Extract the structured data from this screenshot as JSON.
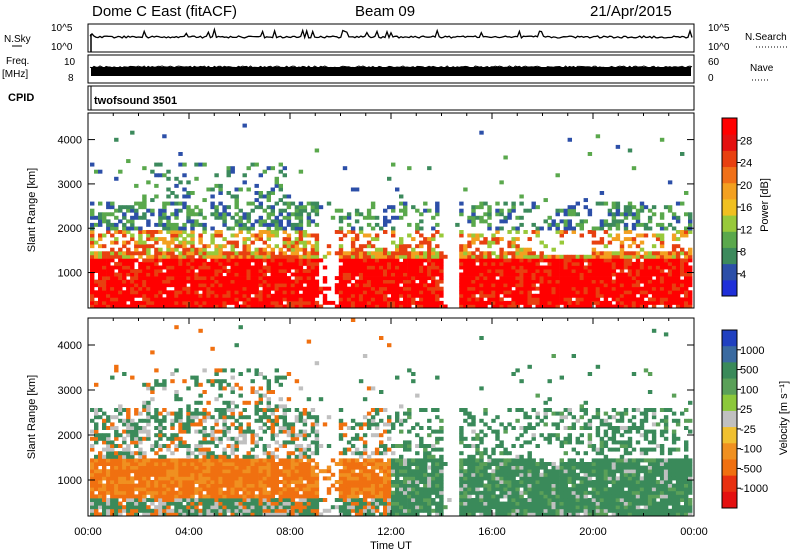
{
  "chart_data": [
    {
      "type": "line",
      "header": {
        "station": "Dome C East (fitACF)",
        "beam": "Beam 09",
        "date": "21/Apr/2015"
      },
      "panels": [
        {
          "name": "N.Sky",
          "left_label": "N.Sky",
          "right_label": "N.Search",
          "left_ticks": [
            "10^5",
            "10^0"
          ],
          "right_ticks": [
            "10^5",
            "10^0"
          ]
        },
        {
          "name": "Freq",
          "left_label_1": "Freq.",
          "left_label_2": "[MHz]",
          "right_label": "Nave",
          "left_ticks": [
            "10",
            "8"
          ],
          "right_ticks": [
            "60",
            "0"
          ]
        },
        {
          "name": "CPID",
          "left_label": "CPID",
          "program_text": "twofsound 3501"
        }
      ]
    },
    {
      "type": "heatmap",
      "name": "power",
      "ylabel": "Slant Range [km]",
      "ylim": [
        200,
        4600
      ],
      "yticks": [
        1000,
        2000,
        3000,
        4000
      ],
      "colorbar_label": "Power [dB]",
      "colorbar_ticks": [
        "4",
        "8",
        "12",
        "16",
        "20",
        "24",
        "28"
      ],
      "colorbar_colors": [
        "#1f2fd8",
        "#2c4fa8",
        "#3c8a5c",
        "#5aa84c",
        "#98c93a",
        "#f0c020",
        "#f3a020",
        "#f07018",
        "#e84010",
        "#e41010",
        "#ff0000"
      ]
    },
    {
      "type": "heatmap",
      "name": "velocity",
      "ylabel": "Slant Range [km]",
      "ylim": [
        200,
        4600
      ],
      "yticks": [
        1000,
        2000,
        3000,
        4000
      ],
      "colorbar_label": "Velocity [m s⁻¹]",
      "colorbar_ticks": [
        "1000",
        "500",
        "100",
        "25",
        "-25",
        "-100",
        "-500",
        "-1000"
      ],
      "colorbar_colors": [
        "#2040c0",
        "#3a6aa0",
        "#3a8a5a",
        "#5aa058",
        "#8cc83a",
        "#c0c0c0",
        "#f0c030",
        "#f09020",
        "#f07010",
        "#e83010",
        "#e41010"
      ],
      "xlabel": "Time UT",
      "xticks": [
        "00:00",
        "04:00",
        "08:00",
        "12:00",
        "16:00",
        "20:00",
        "00:00"
      ]
    }
  ]
}
